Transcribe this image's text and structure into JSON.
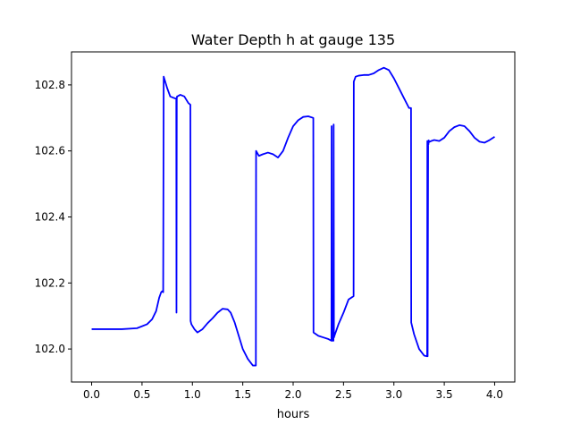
{
  "chart_data": {
    "type": "line",
    "title": "Water Depth h at gauge 135",
    "xlabel": "hours",
    "ylabel": "",
    "xlim": [
      -0.2,
      4.2
    ],
    "ylim": [
      101.9,
      102.9
    ],
    "xticks": [
      0.0,
      0.5,
      1.0,
      1.5,
      2.0,
      2.5,
      3.0,
      3.5,
      4.0
    ],
    "xtick_labels": [
      "0.0",
      "0.5",
      "1.0",
      "1.5",
      "2.0",
      "2.5",
      "3.0",
      "3.5",
      "4.0"
    ],
    "yticks": [
      102.0,
      102.2,
      102.4,
      102.6,
      102.8
    ],
    "ytick_labels": [
      "102.0",
      "102.2",
      "102.4",
      "102.6",
      "102.8"
    ],
    "grid": false,
    "series": [
      {
        "color": "#0000ff",
        "x": [
          0.0,
          0.3,
          0.45,
          0.55,
          0.6,
          0.64,
          0.67,
          0.69,
          0.7,
          0.71,
          0.715,
          0.72,
          0.75,
          0.78,
          0.82,
          0.84,
          0.842,
          0.845,
          0.848,
          0.85,
          0.88,
          0.92,
          0.96,
          0.98,
          0.982,
          0.99,
          1.02,
          1.05,
          1.1,
          1.15,
          1.2,
          1.25,
          1.3,
          1.35,
          1.38,
          1.42,
          1.46,
          1.5,
          1.55,
          1.6,
          1.63,
          1.632,
          1.66,
          1.7,
          1.75,
          1.8,
          1.85,
          1.9,
          1.95,
          2.0,
          2.05,
          2.1,
          2.15,
          2.2,
          2.202,
          2.25,
          2.3,
          2.35,
          2.38,
          2.382,
          2.385,
          2.39,
          2.4,
          2.402,
          2.405,
          2.41,
          2.45,
          2.5,
          2.55,
          2.6,
          2.602,
          2.62,
          2.65,
          2.7,
          2.75,
          2.8,
          2.85,
          2.9,
          2.95,
          3.0,
          3.05,
          3.1,
          3.15,
          3.17,
          3.172,
          3.2,
          3.25,
          3.3,
          3.33,
          3.332,
          3.335,
          3.34,
          3.343,
          3.345,
          3.35,
          3.37,
          3.4,
          3.45,
          3.5,
          3.55,
          3.6,
          3.65,
          3.7,
          3.75,
          3.8,
          3.85,
          3.9,
          3.95,
          4.0
        ],
        "values": [
          102.06,
          102.06,
          102.063,
          102.075,
          102.09,
          102.115,
          102.155,
          102.172,
          102.175,
          102.172,
          102.825,
          102.82,
          102.79,
          102.765,
          102.76,
          102.758,
          102.11,
          102.76,
          102.765,
          102.765,
          102.77,
          102.765,
          102.745,
          102.74,
          102.085,
          102.075,
          102.06,
          102.05,
          102.06,
          102.078,
          102.093,
          102.11,
          102.122,
          102.12,
          102.11,
          102.08,
          102.04,
          102.0,
          101.97,
          101.95,
          101.95,
          102.6,
          102.585,
          102.59,
          102.595,
          102.59,
          102.58,
          102.6,
          102.64,
          102.675,
          102.693,
          102.703,
          102.705,
          102.7,
          102.05,
          102.04,
          102.035,
          102.03,
          102.025,
          102.675,
          102.03,
          102.025,
          102.025,
          102.68,
          102.035,
          102.04,
          102.075,
          102.11,
          102.15,
          102.16,
          102.81,
          102.825,
          102.828,
          102.83,
          102.83,
          102.835,
          102.845,
          102.852,
          102.845,
          102.82,
          102.79,
          102.76,
          102.73,
          102.73,
          102.08,
          102.045,
          102.0,
          101.98,
          101.978,
          102.63,
          101.978,
          102.63,
          102.62,
          102.632,
          102.627,
          102.63,
          102.633,
          102.63,
          102.64,
          102.66,
          102.672,
          102.678,
          102.675,
          102.66,
          102.64,
          102.628,
          102.625,
          102.633,
          102.643
        ]
      }
    ]
  }
}
